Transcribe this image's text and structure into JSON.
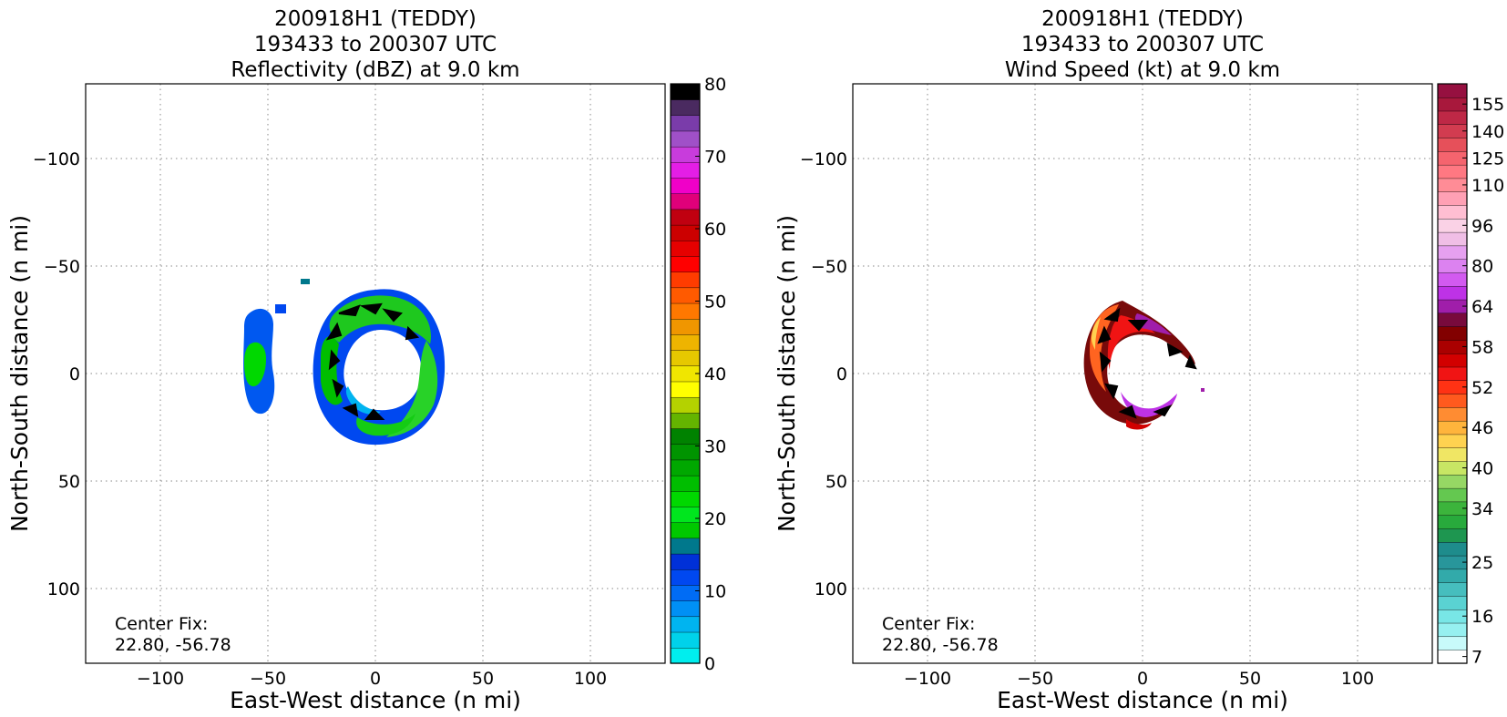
{
  "chart_data": [
    {
      "type": "heatmap",
      "title_lines": [
        "200918H1 (TEDDY)",
        "193433 to 200307 UTC",
        "Reflectivity (dBZ) at 9.0 km"
      ],
      "xlabel": "East-West distance (n mi)",
      "ylabel": "North-South distance (n mi)",
      "xlim": [
        -135,
        135
      ],
      "ylim": [
        -135,
        135
      ],
      "xticks": [
        -100,
        -50,
        0,
        50,
        100
      ],
      "yticks": [
        -100,
        -50,
        0,
        50,
        100
      ],
      "xtick_labels": [
        "−100",
        "−50",
        "0",
        "50",
        "100"
      ],
      "ytick_labels": [
        "−100",
        "−50",
        "0",
        "50",
        "100"
      ],
      "grid": true,
      "annotation_lines": [
        "Center Fix:",
        "22.80, -56.78"
      ],
      "colorbar": {
        "levels": [
          0,
          2.5,
          5,
          7.5,
          10,
          12.5,
          15,
          17.5,
          20,
          22.5,
          25,
          27.5,
          30,
          32.5,
          35,
          37.5,
          40,
          42.5,
          45,
          47.5,
          50,
          52.5,
          55,
          57.5,
          60,
          62.5,
          65,
          67.5,
          70,
          72.5,
          75,
          77.5,
          80
        ],
        "colors": [
          "#00eeee",
          "#00d2ea",
          "#00b4f0",
          "#0090f5",
          "#006cf5",
          "#0048f0",
          "#0030d8",
          "#00788c",
          "#00c800",
          "#00e61e",
          "#00d800",
          "#00be00",
          "#00a800",
          "#009400",
          "#008200",
          "#64b400",
          "#b4d200",
          "#ffff00",
          "#f0e600",
          "#e6c800",
          "#eeb400",
          "#f09600",
          "#ff7800",
          "#ff5a00",
          "#ff3c00",
          "#ff0000",
          "#e60000",
          "#cc0000",
          "#c00010",
          "#e0007a",
          "#f000c8",
          "#e41ee6",
          "#c83cdc",
          "#a050c8",
          "#7a3caa",
          "#4a2a60",
          "#000000"
        ],
        "ticks": [
          0,
          10,
          20,
          30,
          40,
          50,
          60,
          70,
          80
        ],
        "tick_labels": [
          "0",
          "10",
          "20",
          "30",
          "40",
          "50",
          "60",
          "70",
          "80"
        ]
      }
    },
    {
      "type": "heatmap",
      "title_lines": [
        "200918H1 (TEDDY)",
        "193433 to 200307 UTC",
        "Wind Speed (kt) at 9.0 km"
      ],
      "xlabel": "East-West distance (n mi)",
      "ylabel": "North-South distance (n mi)",
      "xlim": [
        -135,
        135
      ],
      "ylim": [
        -135,
        135
      ],
      "xticks": [
        -100,
        -50,
        0,
        50,
        100
      ],
      "yticks": [
        -100,
        -50,
        0,
        50,
        100
      ],
      "xtick_labels": [
        "−100",
        "−50",
        "0",
        "50",
        "100"
      ],
      "ytick_labels": [
        "−100",
        "−50",
        "0",
        "50",
        "100"
      ],
      "grid": true,
      "annotation_lines": [
        "Center Fix:",
        "22.80, -56.78"
      ],
      "colorbar": {
        "colors": [
          "#ffffff",
          "#c8fafa",
          "#96f0f0",
          "#78e6e6",
          "#5ad2d2",
          "#46bebe",
          "#32aaaa",
          "#28969b",
          "#1e8c8c",
          "#1e9650",
          "#28aa3c",
          "#3cb43c",
          "#64c850",
          "#96d764",
          "#c8e664",
          "#f0e664",
          "#ffd250",
          "#ffb43c",
          "#ff8c32",
          "#ff5a1e",
          "#ff3214",
          "#f01414",
          "#d20000",
          "#aa0000",
          "#820000",
          "#780a3c",
          "#a01eaa",
          "#be32e6",
          "#d25af0",
          "#dc82f0",
          "#e6a0f0",
          "#f0bee6",
          "#fad2e6",
          "#ffbed2",
          "#ffa0b4",
          "#ff8c96",
          "#ff7882",
          "#f5646e",
          "#e6505a",
          "#d23c50",
          "#be2846",
          "#a8183c",
          "#961040"
        ],
        "ticks": [
          7,
          16,
          25,
          34,
          40,
          46,
          52,
          58,
          64,
          80,
          96,
          110,
          125,
          140,
          155
        ],
        "tick_labels": [
          "7",
          "16",
          "25",
          "34",
          "40",
          "46",
          "52",
          "58",
          "64",
          "80",
          "96",
          "110",
          "125",
          "140",
          "155"
        ],
        "tick_bin_index": [
          0.5,
          3.5,
          7.5,
          11.5,
          14.5,
          17.5,
          20.5,
          23.5,
          26.5,
          29.5,
          32.5,
          35.5,
          37.5,
          39.5,
          41.5
        ]
      }
    }
  ]
}
